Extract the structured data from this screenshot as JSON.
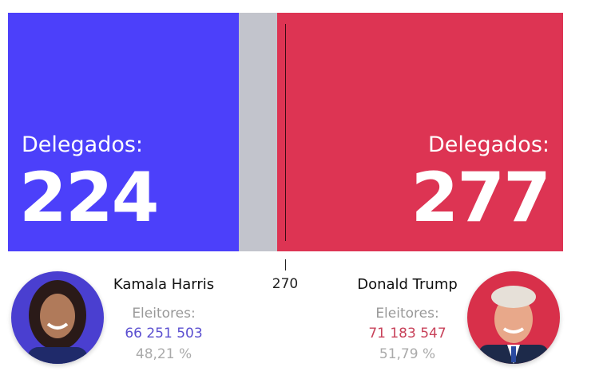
{
  "threshold": "270",
  "colors": {
    "harris": "#4c40fa",
    "trump": "#dd3453",
    "undecided": "#c2c4cc"
  },
  "harris": {
    "name": "Kamala Harris",
    "delegates_label": "Delegados:",
    "delegates": "224",
    "voters_label": "Eleitores:",
    "votes": "66 251 503",
    "percent": "48,21 %"
  },
  "trump": {
    "name": "Donald Trump",
    "delegates_label": "Delegados:",
    "delegates": "277",
    "voters_label": "Eleitores:",
    "votes": "71 183 547",
    "percent": "51,79 %"
  }
}
